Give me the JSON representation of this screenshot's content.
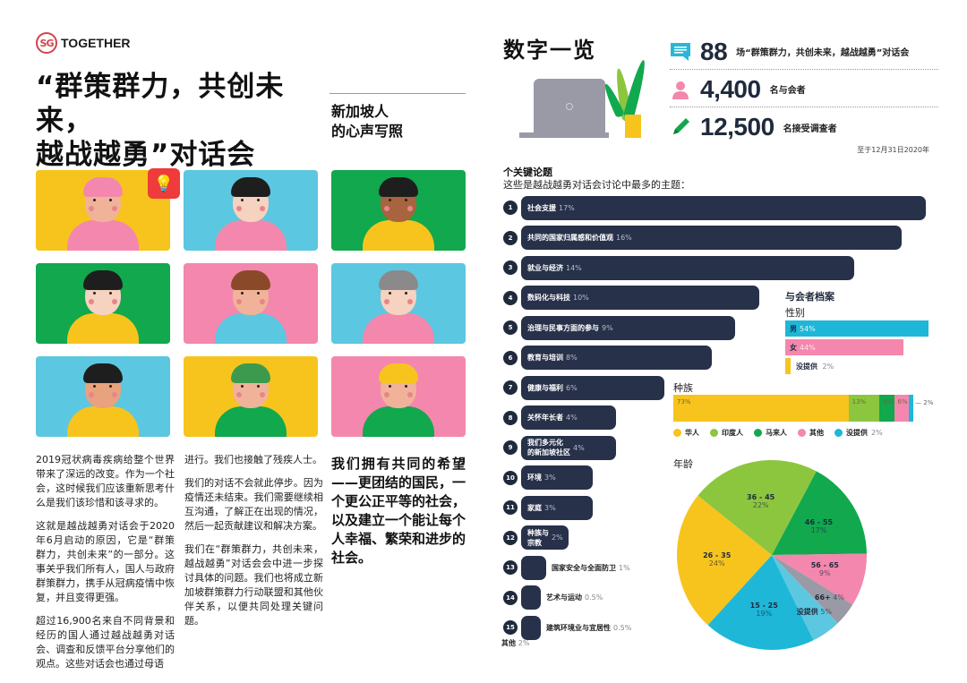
{
  "logo": {
    "mark": "SG",
    "text": "TOGETHER"
  },
  "left": {
    "title_line1": "“群策群力，共创未来，",
    "title_line2": "越战越勇”对话会",
    "subtitle_line1": "新加坡人",
    "subtitle_line2": "的心声写照",
    "illustration_panels": [
      {
        "name": "hijab-woman-idea",
        "bg": "#f7c41d"
      },
      {
        "name": "man-reading-book",
        "bg": "#5cc7e0"
      },
      {
        "name": "man-with-laptop",
        "bg": "#11a84e"
      },
      {
        "name": "woman-painting",
        "bg": "#11a84e"
      },
      {
        "name": "woman-giving-bag",
        "bg": "#f487ad"
      },
      {
        "name": "elderly-woman",
        "bg": "#5cc7e0"
      },
      {
        "name": "mother-with-baby",
        "bg": "#5cc7e0"
      },
      {
        "name": "soldier-waving",
        "bg": "#f7c41d"
      },
      {
        "name": "worker-with-pipes",
        "bg": "#f487ad"
      }
    ],
    "col1": [
      "2019冠状病毒疾病给整个世界带来了深远的改变。作为一个社会，这时候我们应该重新思考什么是我们该珍惜和该寻求的。",
      "这就是越战越勇对话会于2020年6月启动的原因，它是“群策群力，共创未来”的一部分。这事关乎我们所有人，国人与政府群策群力，携手从冠病疫情中恢复，并且变得更强。",
      "超过16,900名来自不同背景和经历的国人通过越战越勇对话会、调查和反馈平台分享他们的观点。这些对话会也通过母语"
    ],
    "col2": [
      "进行。我们也接触了残疾人士。",
      "我们的对话不会就此停步。因为疫情还未结束。我们需要继续相互沟通，了解正在出现的情况，然后一起贡献建议和解决方案。",
      "我们在“群策群力，共创未来，越战越勇”对话会会中进一步探讨具体的问题。我们也将成立新加坡群策群力行动联盟和其他伙伴关系，以便共同处理关键问题。"
    ],
    "quote": "我们拥有共同的希望——更团结的国民，一个更公正平等的社会，以及建立一个能让每个人幸福、繁荣和进步的社会。"
  },
  "right": {
    "title": "数字一览",
    "stats": [
      {
        "icon": "chat-bubble-icon",
        "value": "88",
        "label": "场“群策群力，共创未来，越战越勇”对话会",
        "color": "#29b6d8"
      },
      {
        "icon": "person-icon",
        "value": "4,400",
        "label": "名与会者",
        "color": "#f487ad"
      },
      {
        "icon": "pencil-icon",
        "value": "12,500",
        "label": "名接受调查者",
        "color": "#11a84e"
      }
    ],
    "stats_note": "至于12月31日2020年",
    "topics_heading": "个关键论题",
    "topics_subheading": "这些是越战越勇对话会讨论中最多的主题：",
    "others_label": "其他",
    "others_pct": "2%",
    "profile_title": "与会者档案",
    "gender_title": "性别",
    "race_title": "种族",
    "age_title": "年龄",
    "race_callout": "2%"
  },
  "chart_data": [
    {
      "type": "bar",
      "title": "个关键论题",
      "subtitle": "这些是越战越勇对话会讨论中最多的主题：",
      "orientation": "horizontal",
      "categories": [
        "社会支援",
        "共同的国家归属感和价值观",
        "就业与经济",
        "数码化与科技",
        "治理与民事方面的参与",
        "教育与培训",
        "健康与福利",
        "关怀年长者",
        "我们多元化的新加坡社区",
        "环境",
        "家庭",
        "种族与宗教",
        "国家安全与全面防卫",
        "艺术与运动",
        "建筑环境业与宜居性",
        "其他"
      ],
      "values": [
        17,
        16,
        14,
        10,
        9,
        8,
        6,
        4,
        4,
        3,
        3,
        2,
        1,
        0.5,
        0.5,
        2
      ],
      "unit": "%",
      "color": "#27314a"
    },
    {
      "type": "bar",
      "title": "性别",
      "orientation": "horizontal",
      "categories": [
        "男",
        "女",
        "没提供"
      ],
      "values": [
        54,
        44,
        2
      ],
      "colors": [
        "#1eb7d8",
        "#f487ad",
        "#f7c41d"
      ],
      "unit": "%"
    },
    {
      "type": "bar",
      "title": "种族",
      "stacked": true,
      "categories": [
        "华人",
        "印度人",
        "马来人",
        "其他",
        "没提供"
      ],
      "values": [
        73,
        13,
        6,
        6,
        2
      ],
      "colors": [
        "#f7c41d",
        "#8cc63f",
        "#11a84e",
        "#f487ad",
        "#1eb7d8"
      ],
      "unit": "%"
    },
    {
      "type": "pie",
      "title": "年龄",
      "categories": [
        "46 - 55",
        "56 - 65",
        "66+",
        "没提供",
        "15 - 25",
        "26 - 35",
        "36 - 45"
      ],
      "values": [
        17,
        9,
        4,
        5,
        19,
        24,
        22
      ],
      "colors": [
        "#11a84e",
        "#f487ad",
        "#9a9aa6",
        "#5cc7e0",
        "#1eb7d8",
        "#f7c41d",
        "#8cc63f"
      ],
      "unit": "%"
    }
  ]
}
